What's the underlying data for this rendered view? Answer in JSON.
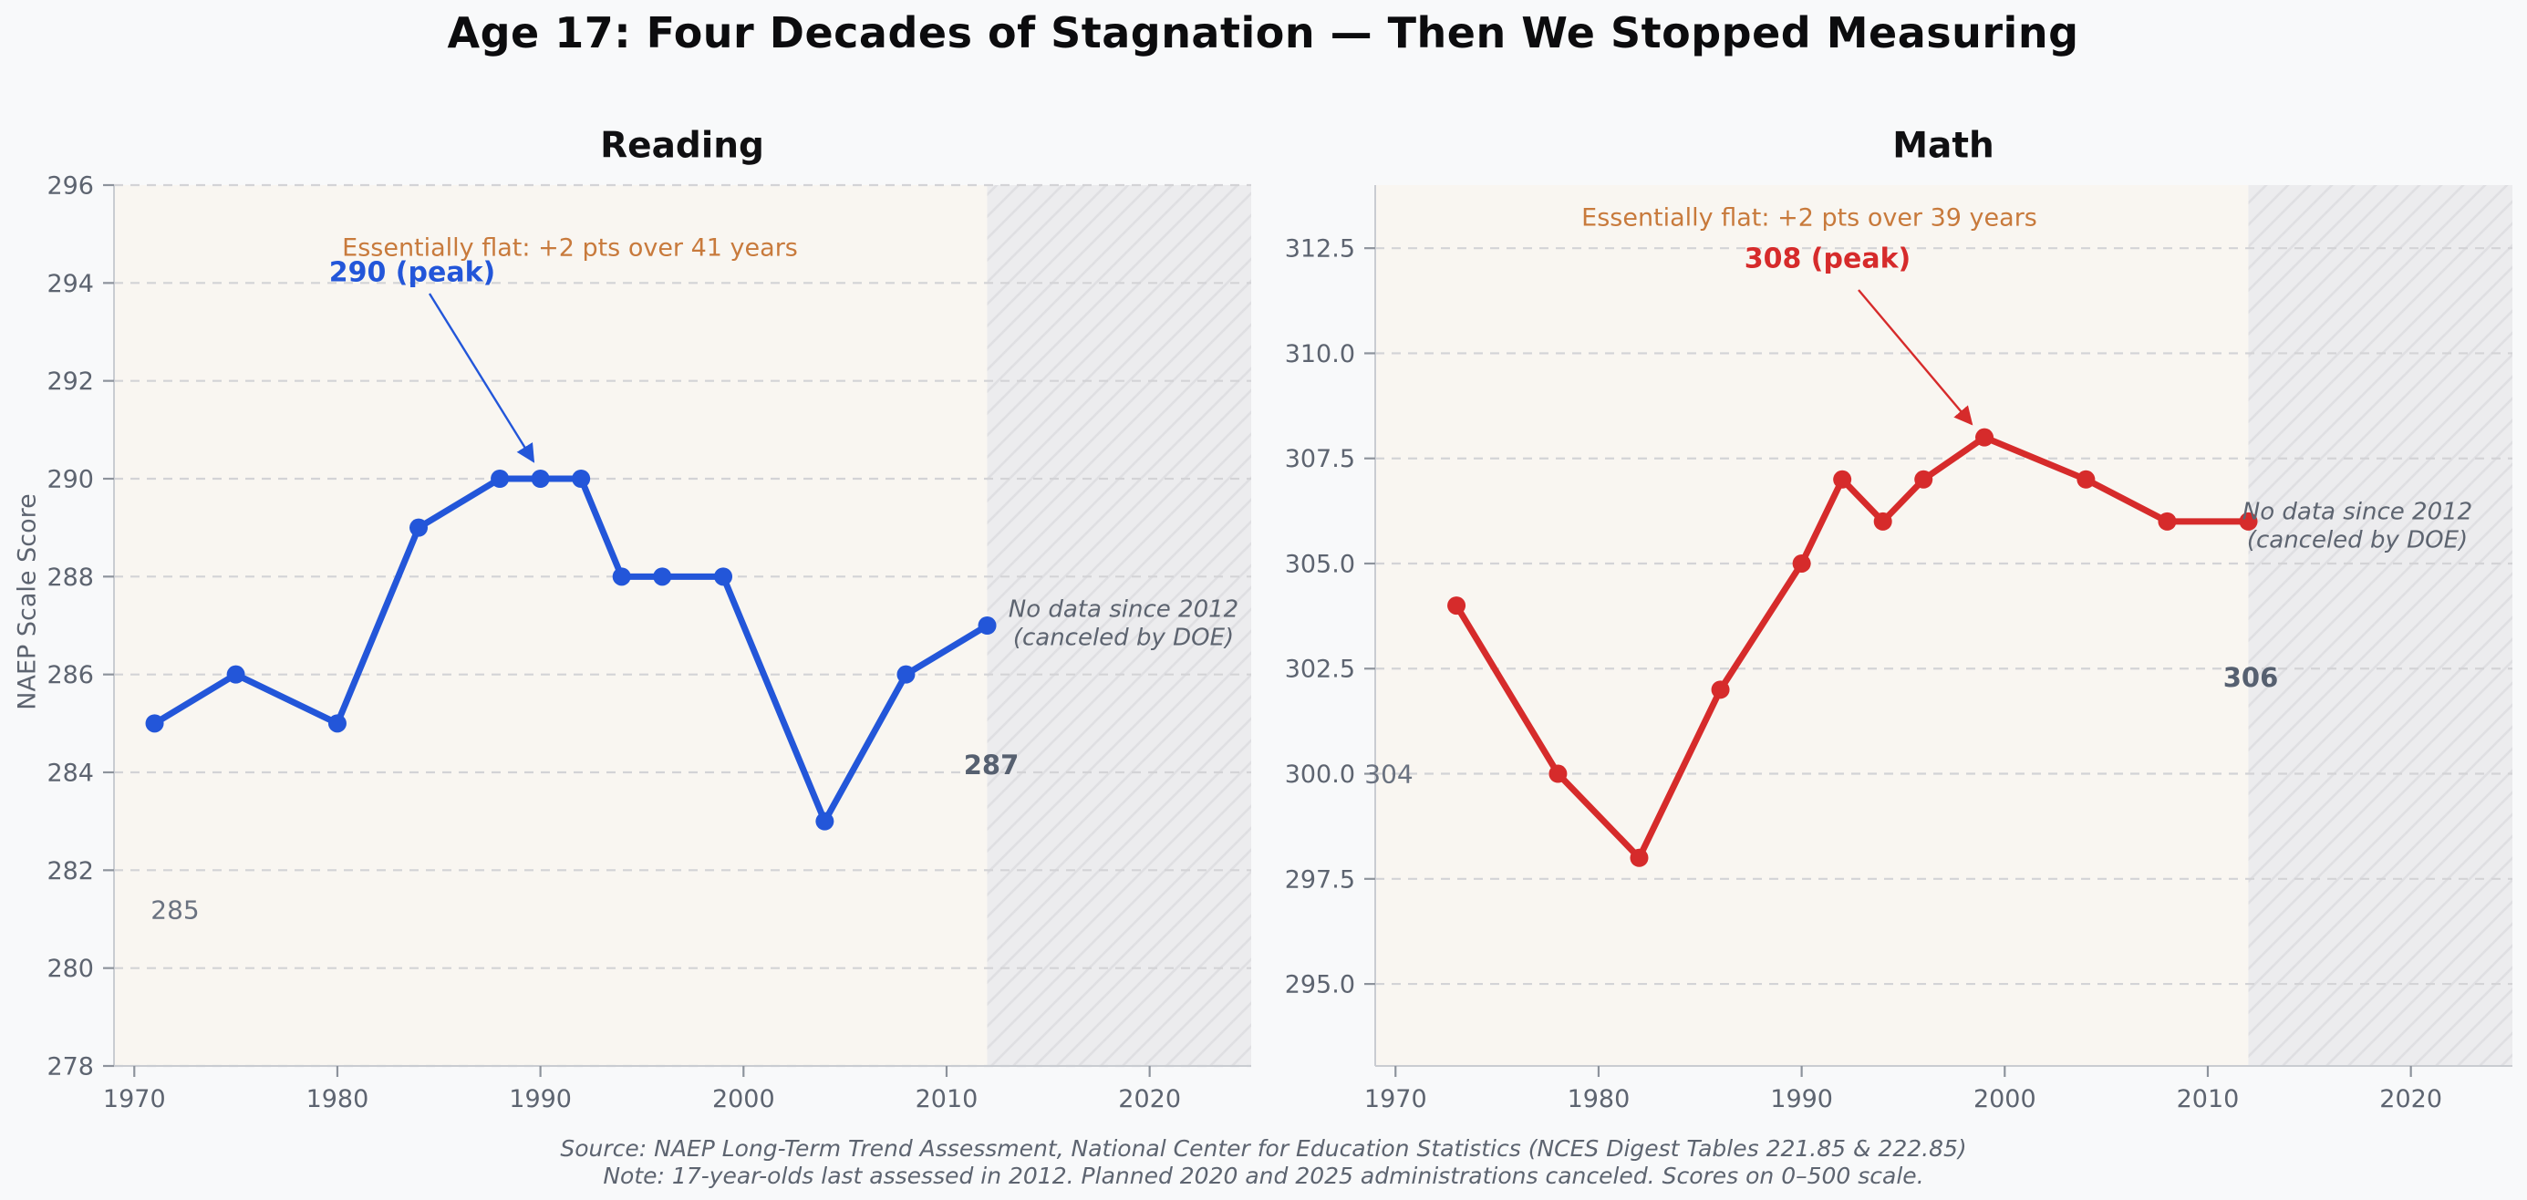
{
  "title": "Age 17: Four Decades of Stagnation — Then We Stopped Measuring",
  "ylabel": "NAEP Scale Score",
  "footer": {
    "source": "Source: NAEP Long-Term Trend Assessment, National Center for Education Statistics (NCES Digest Tables 221.85 & 222.85)",
    "note": "Note: 17-year-olds last assessed in 2012. Planned 2020 and 2025 administrations canceled. Scores on 0–500 scale."
  },
  "colors": {
    "reading_blue": "#2356d9",
    "math_red": "#d62b2b",
    "annotation_orange": "#c87a3c",
    "tick_gray": "#5d6470",
    "plot_background": "#f9f6f1",
    "figure_background": "#f8f9fa",
    "hatch_background": "#ececee",
    "hatch_line": "#dfdfe2",
    "gridline": "#d3d3d6"
  },
  "chart_data": [
    {
      "type": "line",
      "title": "Reading",
      "series_color": "#2356d9",
      "x": [
        1971,
        1975,
        1980,
        1984,
        1988,
        1990,
        1992,
        1994,
        1996,
        1999,
        2004,
        2008,
        2012
      ],
      "y": [
        285,
        286,
        285,
        289,
        290,
        290,
        290,
        288,
        288,
        288,
        283,
        286,
        287
      ],
      "xlim": [
        1969,
        2025
      ],
      "ylim": [
        278,
        296
      ],
      "xticks": [
        1970,
        1980,
        1990,
        2000,
        2010,
        2020
      ],
      "yticks": [
        278,
        280,
        282,
        284,
        286,
        288,
        290,
        292,
        294,
        296
      ],
      "ytick_labels": [
        "278",
        "280",
        "282",
        "284",
        "286",
        "288",
        "290",
        "292",
        "294",
        "296"
      ],
      "grid": true,
      "legend": "none",
      "no_data_start": 2012,
      "peak": {
        "x": 1990,
        "y": 290
      },
      "annotations": {
        "flat_note": "Essentially flat: +2 pts over 41 years",
        "peak_label": "290 (peak)",
        "first_value_label": "285",
        "last_value_label": "287",
        "no_data_line1": "No data since 2012",
        "no_data_line2": "(canceled by DOE)"
      }
    },
    {
      "type": "line",
      "title": "Math",
      "series_color": "#d62b2b",
      "x": [
        1973,
        1978,
        1982,
        1986,
        1990,
        1992,
        1994,
        1996,
        1999,
        2004,
        2008,
        2012
      ],
      "y": [
        304,
        300,
        298,
        302,
        305,
        307,
        306,
        307,
        308,
        307,
        306,
        306
      ],
      "xlim": [
        1969,
        2025
      ],
      "ylim": [
        293.05,
        314.0
      ],
      "xticks": [
        1970,
        1980,
        1990,
        2000,
        2010,
        2020
      ],
      "yticks": [
        295.0,
        297.5,
        300.0,
        302.5,
        305.0,
        307.5,
        310.0,
        312.5
      ],
      "ytick_labels": [
        "295.0",
        "297.5",
        "300.0",
        "302.5",
        "305.0",
        "307.5",
        "310.0",
        "312.5"
      ],
      "grid": true,
      "legend": "none",
      "no_data_start": 2012,
      "peak": {
        "x": 1999,
        "y": 308
      },
      "annotations": {
        "flat_note": "Essentially flat: +2 pts over 39 years",
        "peak_label": "308 (peak)",
        "first_value_label": "304",
        "last_value_label": "306",
        "no_data_line1": "No data since 2012",
        "no_data_line2": "(canceled by DOE)"
      }
    }
  ]
}
